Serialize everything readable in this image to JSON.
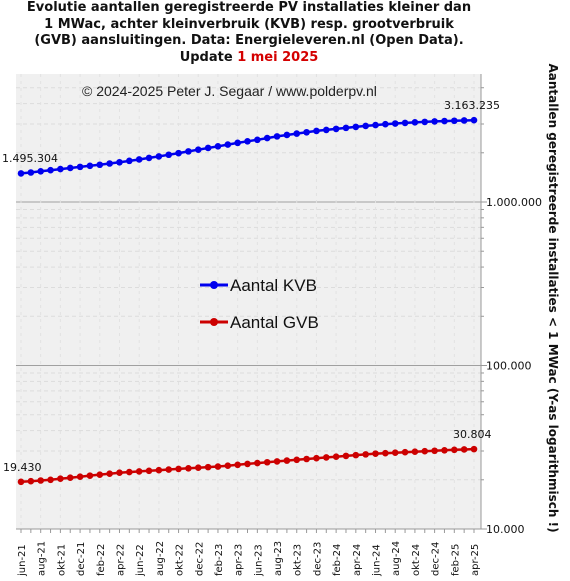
{
  "title": {
    "lines": [
      "Evolutie aantallen geregistreerde PV installaties kleiner dan",
      "1 MWac, achter kleinverbruik (KVB) resp. grootverbruik",
      "(GVB) aansluitingen. Data: Energieleveren.nl (Open Data)."
    ],
    "update_prefix": "Update ",
    "update_date": "1 mei 2025"
  },
  "copyright": "© 2024-2025  Peter J. Segaar / www.polderpv.nl",
  "colors": {
    "kvb": "#0000ee",
    "gvb": "#cc0000",
    "plot_bg": "#f0f0f0",
    "update": "#d40000"
  },
  "chart_data": {
    "type": "line",
    "y_scale": "log",
    "ylim": [
      10000,
      5000000
    ],
    "ylabel": "Aantallen geregistreerde installaties < 1 MWac (Y-as logarithmisch !)",
    "y_ticks": [
      {
        "value": 10000,
        "label": "10.000"
      },
      {
        "value": 100000,
        "label": "100.000"
      },
      {
        "value": 1000000,
        "label": "1.000.000"
      }
    ],
    "legend_position": "center-left",
    "x_tick_labels": [
      "jun-21",
      "aug-21",
      "okt-21",
      "dec-21",
      "feb-22",
      "apr-22",
      "jun-22",
      "aug-22",
      "okt-22",
      "dec-22",
      "feb-23",
      "apr-23",
      "jun-23",
      "aug-23",
      "okt-23",
      "dec-23",
      "feb-24",
      "apr-24",
      "jun-24",
      "aug-24",
      "okt-24",
      "dec-24",
      "feb-25",
      "apr-25"
    ],
    "x": [
      "jun-21",
      "jul-21",
      "aug-21",
      "sep-21",
      "okt-21",
      "nov-21",
      "dec-21",
      "jan-22",
      "feb-22",
      "mrt-22",
      "apr-22",
      "mei-22",
      "jun-22",
      "jul-22",
      "aug-22",
      "sep-22",
      "okt-22",
      "nov-22",
      "dec-22",
      "jan-23",
      "feb-23",
      "mrt-23",
      "apr-23",
      "mei-23",
      "jun-23",
      "jul-23",
      "aug-23",
      "sep-23",
      "okt-23",
      "nov-23",
      "dec-23",
      "jan-24",
      "feb-24",
      "mrt-24",
      "apr-24",
      "mei-24",
      "jun-24",
      "jul-24",
      "aug-24",
      "sep-24",
      "okt-24",
      "nov-24",
      "dec-24",
      "jan-25",
      "feb-25",
      "mrt-25",
      "apr-25"
    ],
    "series": [
      {
        "name": "Aantal KVB",
        "values": [
          1495304,
          1515000,
          1540000,
          1565000,
          1590000,
          1615000,
          1640000,
          1665000,
          1690000,
          1720000,
          1750000,
          1785000,
          1820000,
          1860000,
          1900000,
          1945000,
          1990000,
          2040000,
          2090000,
          2140000,
          2190000,
          2245000,
          2300000,
          2350000,
          2400000,
          2460000,
          2520000,
          2570000,
          2620000,
          2670000,
          2720000,
          2760000,
          2800000,
          2840000,
          2880000,
          2920000,
          2955000,
          2990000,
          3020000,
          3045000,
          3070000,
          3090000,
          3110000,
          3125000,
          3140000,
          3152000,
          3163235
        ],
        "start_label": "1.495.304",
        "end_label": "3.163.235"
      },
      {
        "name": "Aantal GVB",
        "values": [
          19430,
          19600,
          19800,
          20000,
          20300,
          20600,
          20900,
          21200,
          21500,
          21800,
          22100,
          22300,
          22500,
          22700,
          22900,
          23100,
          23300,
          23500,
          23700,
          23900,
          24100,
          24400,
          24700,
          25000,
          25300,
          25600,
          25900,
          26200,
          26500,
          26800,
          27100,
          27400,
          27700,
          28000,
          28300,
          28600,
          28900,
          29100,
          29300,
          29500,
          29700,
          29900,
          30100,
          30300,
          30500,
          30650,
          30804
        ],
        "start_label": "19.430",
        "end_label": "30.804"
      }
    ]
  }
}
